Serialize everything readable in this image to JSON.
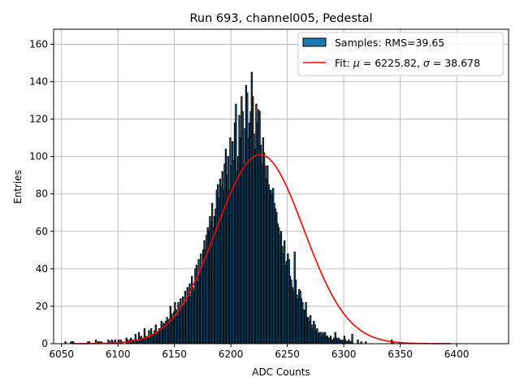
{
  "chart_data": {
    "type": "bar",
    "title": "Run 693, channel005, Pedestal",
    "xlabel": "ADC Counts",
    "ylabel": "Entries",
    "xlim": [
      6043,
      6446
    ],
    "ylim": [
      0,
      168
    ],
    "x_ticks": [
      6050,
      6100,
      6150,
      6200,
      6250,
      6300,
      6350,
      6400
    ],
    "y_ticks": [
      0,
      20,
      40,
      60,
      80,
      100,
      120,
      140,
      160
    ],
    "grid": true,
    "legend_position": "top-right",
    "colors": {
      "bars": "#1f77b4",
      "bar_edge": "#000000",
      "fit": "#ff0000"
    },
    "bin_width": 1,
    "series": [
      {
        "name": "Samples: RMS=39.65",
        "type": "histogram",
        "x_start": 6053,
        "values": [
          1,
          0,
          0,
          0,
          0,
          1,
          1,
          1,
          0,
          0,
          0,
          0,
          0,
          0,
          0,
          0,
          0,
          0,
          0,
          0,
          1,
          1,
          0,
          0,
          0,
          0,
          0,
          2,
          0,
          1,
          1,
          0,
          1,
          0,
          0,
          0,
          0,
          0,
          2,
          1,
          0,
          2,
          1,
          0,
          2,
          0,
          0,
          2,
          0,
          2,
          1,
          0,
          0,
          0,
          3,
          2,
          1,
          2,
          3,
          2,
          1,
          2,
          5,
          2,
          1,
          6,
          3,
          4,
          2,
          3,
          8,
          4,
          3,
          3,
          7,
          3,
          8,
          5,
          5,
          7,
          10,
          5,
          6,
          8,
          8,
          12,
          9,
          11,
          10,
          12,
          14,
          12,
          13,
          20,
          16,
          13,
          17,
          22,
          18,
          15,
          22,
          18,
          24,
          20,
          25,
          20,
          28,
          22,
          30,
          27,
          32,
          25,
          36,
          30,
          28,
          40,
          42,
          33,
          45,
          38,
          48,
          42,
          50,
          55,
          50,
          58,
          62,
          60,
          68,
          65,
          75,
          62,
          68,
          72,
          82,
          85,
          78,
          88,
          84,
          92,
          82,
          96,
          104,
          90,
          100,
          82,
          110,
          95,
          108,
          98,
          118,
          128,
          92,
          100,
          122,
          110,
          132,
          124,
          96,
          115,
          138,
          134,
          110,
          118,
          124,
          145,
          132,
          112,
          104,
          128,
          118,
          125,
          124,
          106,
          96,
          110,
          102,
          95,
          88,
          95,
          85,
          82,
          82,
          80,
          83,
          75,
          72,
          70,
          64,
          62,
          58,
          60,
          52,
          48,
          55,
          42,
          44,
          48,
          45,
          36,
          34,
          30,
          28,
          49,
          34,
          26,
          24,
          29,
          28,
          24,
          22,
          18,
          18,
          22,
          14,
          14,
          12,
          15,
          10,
          8,
          12,
          10,
          7,
          8,
          5,
          6,
          6,
          4,
          6,
          5,
          6,
          4,
          4,
          3,
          3,
          4,
          2,
          2,
          3,
          6,
          3,
          2,
          3,
          2,
          2,
          1,
          2,
          4,
          2,
          1,
          1,
          2,
          1,
          1,
          5,
          0,
          0,
          0,
          0,
          2,
          0,
          0,
          1,
          0,
          0,
          0,
          1,
          0,
          0,
          0,
          0,
          0,
          0,
          0,
          0,
          0,
          0,
          0,
          0,
          0,
          0,
          0,
          0,
          0,
          0,
          0,
          0,
          0,
          0,
          2,
          1
        ]
      },
      {
        "name": "Fit: μ = 6225.82, σ = 38.678",
        "type": "line",
        "mu": 6225.82,
        "sigma": 38.678,
        "amplitude": 101,
        "x_range": [
          6060,
          6395
        ]
      }
    ]
  },
  "legend": {
    "samples_label": "Samples: RMS=39.65",
    "fit_prefix": "Fit: ",
    "fit_mu_symbol": "μ",
    "fit_mu_value": " = 6225.82, ",
    "fit_sigma_symbol": "σ",
    "fit_sigma_value": " = 38.678"
  }
}
